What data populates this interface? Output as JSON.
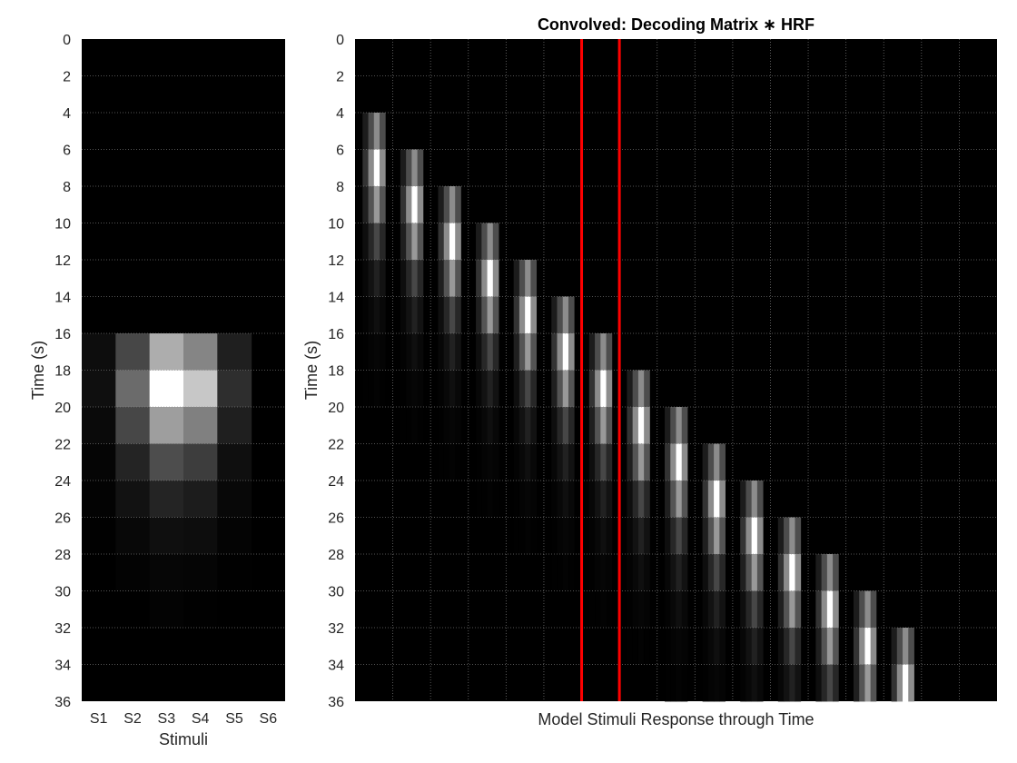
{
  "chart_data": [
    {
      "type": "heatmap",
      "title": "",
      "xlabel": "Stimuli",
      "ylabel": "Time (s)",
      "colormap": "gray",
      "categories": [
        "S1",
        "S2",
        "S3",
        "S4",
        "S5",
        "S6"
      ],
      "y_ticks": [
        0,
        2,
        4,
        6,
        8,
        10,
        12,
        14,
        16,
        18,
        20,
        22,
        24,
        26,
        28,
        30,
        32,
        34,
        36
      ],
      "ylim": [
        0,
        36
      ],
      "y_step": 2,
      "grid": true,
      "rows": [
        [
          0,
          0,
          0,
          0,
          0,
          0
        ],
        [
          0,
          0,
          0,
          0,
          0,
          0
        ],
        [
          0,
          0,
          0,
          0,
          0,
          0
        ],
        [
          0,
          0,
          0,
          0,
          0,
          0
        ],
        [
          0,
          0,
          0,
          0,
          0,
          0
        ],
        [
          0,
          0,
          0,
          0,
          0,
          0
        ],
        [
          0,
          0,
          0,
          0,
          0,
          0
        ],
        [
          0,
          0,
          0,
          0,
          0,
          0
        ],
        [
          0.05,
          0.28,
          0.68,
          0.52,
          0.12,
          0
        ],
        [
          0.06,
          0.42,
          1.0,
          0.78,
          0.18,
          0
        ],
        [
          0.04,
          0.28,
          0.62,
          0.5,
          0.12,
          0
        ],
        [
          0.02,
          0.14,
          0.3,
          0.24,
          0.06,
          0
        ],
        [
          0.01,
          0.07,
          0.14,
          0.11,
          0.03,
          0
        ],
        [
          0.005,
          0.03,
          0.06,
          0.05,
          0.015,
          0
        ],
        [
          0,
          0.01,
          0.025,
          0.02,
          0.005,
          0
        ],
        [
          0,
          0,
          0.01,
          0.005,
          0,
          0
        ],
        [
          0,
          0,
          0,
          0,
          0,
          0
        ],
        [
          0,
          0,
          0,
          0,
          0,
          0
        ]
      ]
    },
    {
      "type": "heatmap",
      "title": "Convolved: Decoding Matrix ∗ HRF",
      "xlabel": "Model Stimuli Response through Time",
      "ylabel": "Time (s)",
      "colormap": "gray",
      "y_ticks": [
        0,
        2,
        4,
        6,
        8,
        10,
        12,
        14,
        16,
        18,
        20,
        22,
        24,
        26,
        28,
        30,
        32,
        34,
        36
      ],
      "ylim": [
        0,
        36
      ],
      "y_step": 2,
      "grid": true,
      "n_columns": 17,
      "diagonal_blocks": {
        "first_onset_time": 4,
        "onset_step": 2,
        "count": 15,
        "profile_time_step": 2,
        "column_profile": [
          0.55,
          1.0,
          0.6,
          0.28,
          0.13,
          0.06,
          0.025,
          0.01
        ],
        "within_block_shading": [
          0.2,
          0.55,
          1.0,
          0.55
        ]
      },
      "red_lines": {
        "color": "#ff0000",
        "at_columns": [
          6,
          7
        ]
      }
    }
  ]
}
